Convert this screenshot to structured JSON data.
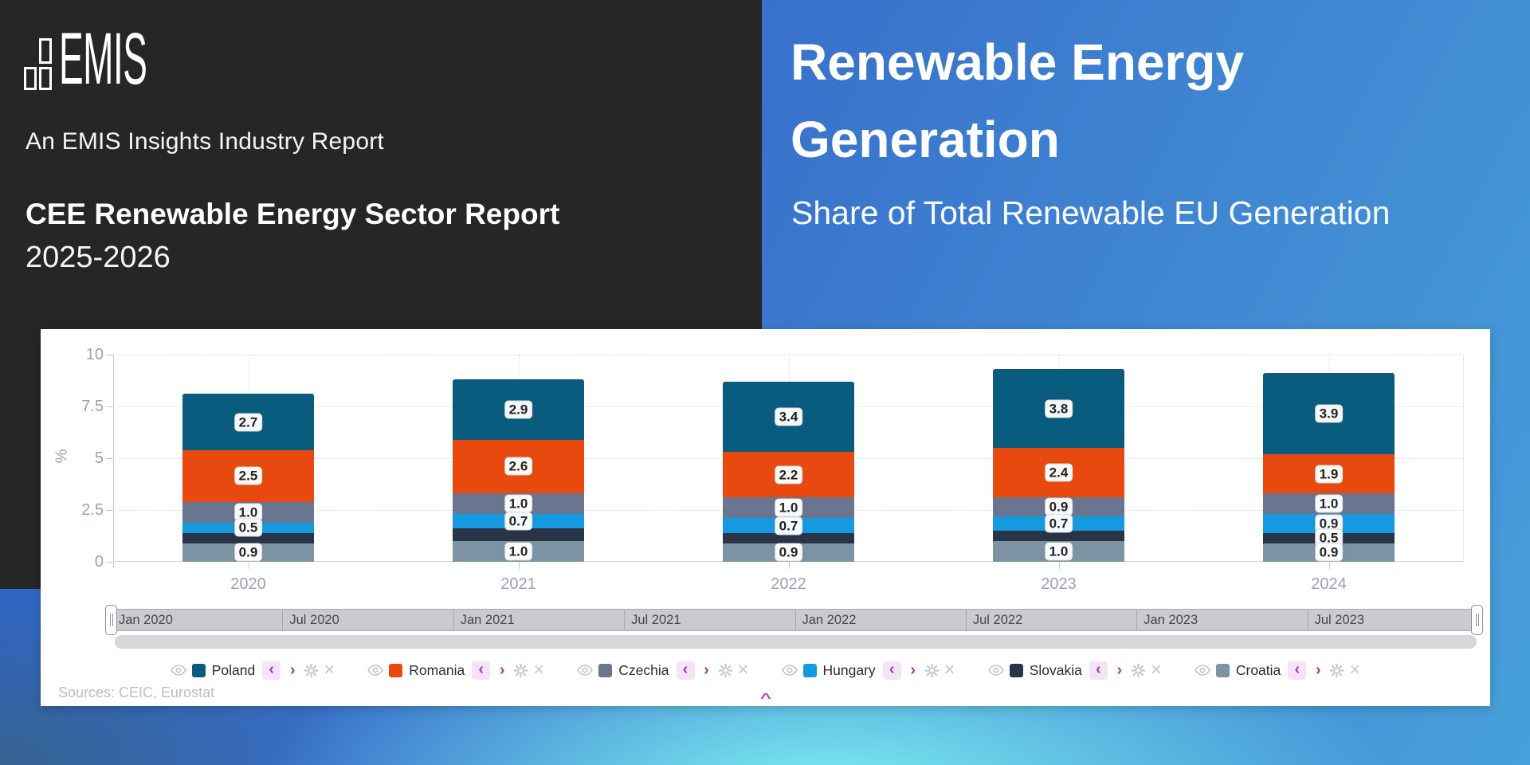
{
  "left_panel": {
    "logo_text": "EMIS",
    "tagline": "An EMIS Insights Industry Report",
    "report_title": "CEE Renewable Energy Sector Report",
    "report_years": "2025-2026"
  },
  "right_panel": {
    "title_line1": "Renewable Energy",
    "title_line2": "Generation",
    "subtitle": "Share of Total Renewable EU Generation"
  },
  "chart_data": {
    "type": "bar",
    "stacked": true,
    "ylabel": "%",
    "ylim": [
      0,
      10
    ],
    "yticks": [
      0,
      2.5,
      5,
      7.5,
      10
    ],
    "ytick_labels": [
      "0",
      "2.5",
      "5",
      "7.5",
      "10"
    ],
    "grid": "dotted",
    "legend_position": "bottom",
    "categories": [
      "2020",
      "2021",
      "2022",
      "2023",
      "2024"
    ],
    "series": [
      {
        "name": "Poland",
        "color": "#0a5c7e",
        "values": [
          2.7,
          2.9,
          3.4,
          3.8,
          3.9
        ],
        "labels": [
          "2.7",
          "2.9",
          "3.4",
          "3.8",
          "3.9"
        ]
      },
      {
        "name": "Romania",
        "color": "#e8490e",
        "values": [
          2.5,
          2.6,
          2.2,
          2.4,
          1.9
        ],
        "labels": [
          "2.5",
          "2.6",
          "2.2",
          "2.4",
          "1.9"
        ]
      },
      {
        "name": "Czechia",
        "color": "#6a7590",
        "values": [
          1.0,
          1.0,
          1.0,
          0.9,
          1.0
        ],
        "labels": [
          "1.0",
          "1.0",
          "1.0",
          "0.9",
          "1.0"
        ]
      },
      {
        "name": "Hungary",
        "color": "#169adf",
        "values": [
          0.5,
          0.7,
          0.7,
          0.7,
          0.9
        ],
        "labels": [
          "0.5",
          "0.7",
          "0.7",
          "0.7",
          "0.9"
        ]
      },
      {
        "name": "Slovakia",
        "color": "#293447",
        "values": [
          0.5,
          0.6,
          0.5,
          0.5,
          0.5
        ],
        "labels": [
          null,
          null,
          null,
          null,
          "0.5"
        ]
      },
      {
        "name": "Croatia",
        "color": "#7b93a3",
        "values": [
          0.9,
          1.0,
          0.9,
          1.0,
          0.9
        ],
        "labels": [
          "0.9",
          "1.0",
          "0.9",
          "1.0",
          "0.9"
        ]
      }
    ]
  },
  "timeline": {
    "labels": [
      "Jan 2020",
      "Jul 2020",
      "Jan 2021",
      "Jul 2021",
      "Jan 2022",
      "Jul 2022",
      "Jan 2023",
      "Jul 2023"
    ]
  },
  "legend_controls": {
    "prev": "‹",
    "next": "›",
    "remove": "×"
  },
  "footer": {
    "sources": "Sources: CEIC, Eurostat",
    "collapse_glyph": "^"
  }
}
